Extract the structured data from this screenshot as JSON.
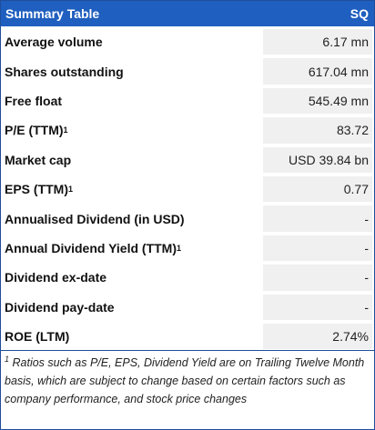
{
  "header": {
    "title": "Summary Table",
    "ticker": "SQ"
  },
  "rows": [
    {
      "label": "Average volume",
      "sup": "",
      "value": "6.17 mn"
    },
    {
      "label": "Shares outstanding",
      "sup": "",
      "value": "617.04 mn"
    },
    {
      "label": "Free float",
      "sup": "",
      "value": "545.49 mn"
    },
    {
      "label": "P/E (TTM)",
      "sup": "1",
      "value": "83.72"
    },
    {
      "label": "Market cap",
      "sup": "",
      "value": "USD 39.84 bn"
    },
    {
      "label": "EPS (TTM)",
      "sup": "1",
      "value": "0.77"
    },
    {
      "label": "Annualised Dividend (in USD)",
      "sup": "",
      "value": "-"
    },
    {
      "label": "Annual Dividend Yield (TTM)",
      "sup": "1",
      "value": "-"
    },
    {
      "label": "Dividend ex-date",
      "sup": "",
      "value": "-"
    },
    {
      "label": "Dividend pay-date",
      "sup": "",
      "value": "-"
    },
    {
      "label": "ROE (LTM)",
      "sup": "",
      "value": "2.74%"
    }
  ],
  "footnote": {
    "marker": "1",
    "text": "Ratios such as P/E, EPS, Dividend Yield are on Trailing Twelve Month basis, which are subject to change based on certain factors such as company performance, and stock price changes"
  },
  "colors": {
    "header_bg": "#1f5fbf",
    "value_bg": "#f0f0f0"
  }
}
